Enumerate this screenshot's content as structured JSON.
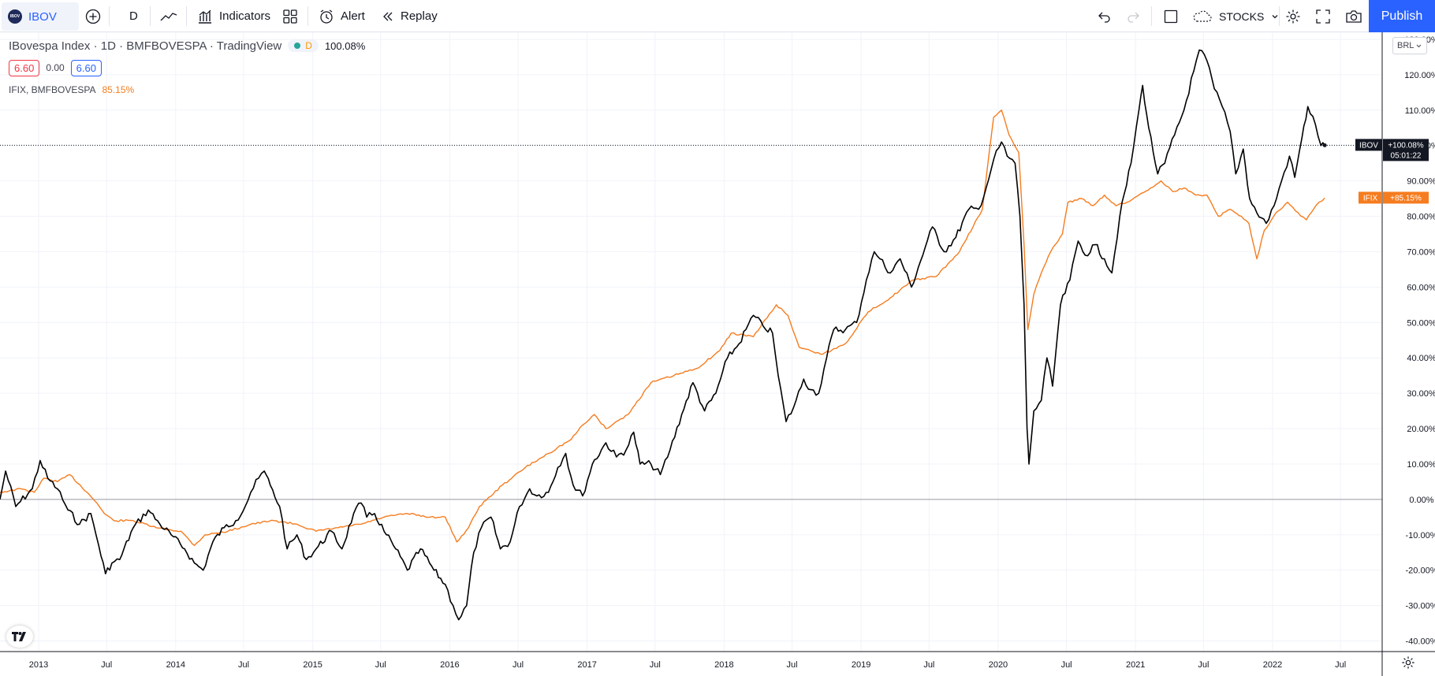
{
  "toolbar": {
    "symbol": "IBOV",
    "symbol_logo_text": "IBOV",
    "interval": "D",
    "indicators_label": "Indicators",
    "alert_label": "Alert",
    "replay_label": "Replay",
    "layout_name": "STOCKS",
    "publish_label": "Publish",
    "icons": [
      "plus-circle-icon",
      "line-chart-icon",
      "indicators-icon",
      "templates-grid-icon",
      "alert-clock-icon",
      "replay-icon",
      "undo-icon",
      "redo-icon",
      "fullscreen-square-icon",
      "cloud-icon",
      "chevron-down-icon",
      "gear-icon",
      "fullscreen-icon",
      "camera-icon"
    ]
  },
  "legend": {
    "title": "IBovespa Index · 1D · BMFBOVESPA · TradingView",
    "interval_badge": "D",
    "value": "100.08%",
    "sell_price": "6.60",
    "spread": "0.00",
    "buy_price": "6.60",
    "compare_label": "IFIX, BMFBOVESPA",
    "compare_value": "85.15%"
  },
  "currency": "BRL",
  "colors": {
    "ibov": "#000000",
    "ifix": "#f57c1f",
    "sell": "#f23645",
    "buy": "#2962ff",
    "accent": "#2962ff",
    "grid": "#f0f3fa"
  },
  "chart_data": {
    "type": "line",
    "ylabel_unit": "%",
    "ylim": [
      -43,
      132
    ],
    "xlim": [
      "2012-09-20",
      "2022-10-20"
    ],
    "y_ticks": [
      "130.00%",
      "120.00%",
      "110.00%",
      "100.00%",
      "90.00%",
      "80.00%",
      "70.00%",
      "60.00%",
      "50.00%",
      "40.00%",
      "30.00%",
      "20.00%",
      "10.00%",
      "0.00%",
      "-10.00%",
      "-20.00%",
      "-30.00%",
      "-40.00%"
    ],
    "x_ticks": [
      {
        "label": "2013",
        "date": "2013-01-01"
      },
      {
        "label": "Jul",
        "date": "2013-07-01"
      },
      {
        "label": "2014",
        "date": "2014-01-01"
      },
      {
        "label": "Jul",
        "date": "2014-07-01"
      },
      {
        "label": "2015",
        "date": "2015-01-01"
      },
      {
        "label": "Jul",
        "date": "2015-07-01"
      },
      {
        "label": "2016",
        "date": "2016-01-01"
      },
      {
        "label": "Jul",
        "date": "2016-07-01"
      },
      {
        "label": "2017",
        "date": "2017-01-01"
      },
      {
        "label": "Jul",
        "date": "2017-07-01"
      },
      {
        "label": "2018",
        "date": "2018-01-01"
      },
      {
        "label": "Jul",
        "date": "2018-07-01"
      },
      {
        "label": "2019",
        "date": "2019-01-01"
      },
      {
        "label": "Jul",
        "date": "2019-07-01"
      },
      {
        "label": "2020",
        "date": "2020-01-01"
      },
      {
        "label": "Jul",
        "date": "2020-07-01"
      },
      {
        "label": "2021",
        "date": "2021-01-01"
      },
      {
        "label": "Jul",
        "date": "2021-07-01"
      },
      {
        "label": "2022",
        "date": "2022-01-01"
      },
      {
        "label": "Jul",
        "date": "2022-07-01"
      }
    ],
    "grid": true,
    "series": [
      {
        "name": "IBOV",
        "last_label": "+100.08%",
        "countdown": "05:01:22",
        "points": [
          [
            "2012-09-20",
            0
          ],
          [
            "2012-10-05",
            8
          ],
          [
            "2012-11-01",
            -2
          ],
          [
            "2012-12-15",
            3
          ],
          [
            "2013-01-05",
            11
          ],
          [
            "2013-01-25",
            6
          ],
          [
            "2013-02-20",
            3
          ],
          [
            "2013-03-20",
            -3
          ],
          [
            "2013-04-20",
            -7
          ],
          [
            "2013-05-20",
            -4
          ],
          [
            "2013-06-10",
            -13
          ],
          [
            "2013-06-28",
            -21
          ],
          [
            "2013-07-15",
            -18
          ],
          [
            "2013-08-05",
            -17
          ],
          [
            "2013-09-10",
            -8
          ],
          [
            "2013-10-20",
            -3
          ],
          [
            "2013-11-20",
            -7
          ],
          [
            "2013-12-20",
            -10
          ],
          [
            "2014-01-25",
            -14
          ],
          [
            "2014-02-20",
            -18
          ],
          [
            "2014-03-15",
            -20
          ],
          [
            "2014-04-10",
            -12
          ],
          [
            "2014-05-10",
            -8
          ],
          [
            "2014-06-10",
            -6
          ],
          [
            "2014-07-05",
            -2
          ],
          [
            "2014-07-20",
            2
          ],
          [
            "2014-08-10",
            6
          ],
          [
            "2014-08-25",
            8
          ],
          [
            "2014-09-10",
            4
          ],
          [
            "2014-10-05",
            -2
          ],
          [
            "2014-10-25",
            -14
          ],
          [
            "2014-11-20",
            -10
          ],
          [
            "2014-12-15",
            -17
          ],
          [
            "2015-01-10",
            -14
          ],
          [
            "2015-02-20",
            -9
          ],
          [
            "2015-03-20",
            -14
          ],
          [
            "2015-04-20",
            -4
          ],
          [
            "2015-05-10",
            -1
          ],
          [
            "2015-05-25",
            -5
          ],
          [
            "2015-06-15",
            -4
          ],
          [
            "2015-07-10",
            -9
          ],
          [
            "2015-08-10",
            -14
          ],
          [
            "2015-09-10",
            -20
          ],
          [
            "2015-10-15",
            -14
          ],
          [
            "2015-11-20",
            -20
          ],
          [
            "2015-12-20",
            -24
          ],
          [
            "2016-01-10",
            -30
          ],
          [
            "2016-01-25",
            -34
          ],
          [
            "2016-02-15",
            -30
          ],
          [
            "2016-03-05",
            -15
          ],
          [
            "2016-03-25",
            -8
          ],
          [
            "2016-04-20",
            -5
          ],
          [
            "2016-05-15",
            -14
          ],
          [
            "2016-06-10",
            -12
          ],
          [
            "2016-07-05",
            -2
          ],
          [
            "2016-08-01",
            3
          ],
          [
            "2016-08-20",
            1
          ],
          [
            "2016-09-20",
            2
          ],
          [
            "2016-10-15",
            9
          ],
          [
            "2016-11-05",
            13
          ],
          [
            "2016-11-25",
            4
          ],
          [
            "2016-12-20",
            1
          ],
          [
            "2017-01-15",
            10
          ],
          [
            "2017-02-20",
            16
          ],
          [
            "2017-03-20",
            12
          ],
          [
            "2017-04-15",
            14
          ],
          [
            "2017-05-05",
            19
          ],
          [
            "2017-05-22",
            10
          ],
          [
            "2017-06-20",
            10
          ],
          [
            "2017-07-15",
            7
          ],
          [
            "2017-08-10",
            14
          ],
          [
            "2017-09-10",
            24
          ],
          [
            "2017-10-10",
            33
          ],
          [
            "2017-11-10",
            25
          ],
          [
            "2017-12-10",
            30
          ],
          [
            "2018-01-10",
            40
          ],
          [
            "2018-02-10",
            44
          ],
          [
            "2018-02-28",
            48
          ],
          [
            "2018-03-20",
            52
          ],
          [
            "2018-04-15",
            49
          ],
          [
            "2018-05-10",
            47
          ],
          [
            "2018-05-25",
            35
          ],
          [
            "2018-06-15",
            22
          ],
          [
            "2018-07-05",
            26
          ],
          [
            "2018-08-01",
            34
          ],
          [
            "2018-08-20",
            31
          ],
          [
            "2018-09-10",
            30
          ],
          [
            "2018-10-01",
            40
          ],
          [
            "2018-10-20",
            48
          ],
          [
            "2018-11-20",
            48
          ],
          [
            "2018-12-20",
            50
          ],
          [
            "2019-01-15",
            62
          ],
          [
            "2019-02-05",
            70
          ],
          [
            "2019-02-20",
            68
          ],
          [
            "2019-03-20",
            64
          ],
          [
            "2019-04-15",
            68
          ],
          [
            "2019-05-15",
            60
          ],
          [
            "2019-06-20",
            71
          ],
          [
            "2019-07-10",
            77
          ],
          [
            "2019-08-10",
            70
          ],
          [
            "2019-09-10",
            74
          ],
          [
            "2019-10-15",
            82
          ],
          [
            "2019-11-10",
            82
          ],
          [
            "2019-11-30",
            88
          ],
          [
            "2019-12-20",
            96
          ],
          [
            "2020-01-10",
            101
          ],
          [
            "2020-01-25",
            97
          ],
          [
            "2020-02-15",
            95
          ],
          [
            "2020-02-28",
            80
          ],
          [
            "2020-03-10",
            55
          ],
          [
            "2020-03-18",
            20
          ],
          [
            "2020-03-23",
            10
          ],
          [
            "2020-04-05",
            25
          ],
          [
            "2020-04-25",
            28
          ],
          [
            "2020-05-10",
            40
          ],
          [
            "2020-05-25",
            32
          ],
          [
            "2020-06-15",
            55
          ],
          [
            "2020-07-10",
            62
          ],
          [
            "2020-08-01",
            73
          ],
          [
            "2020-08-20",
            69
          ],
          [
            "2020-09-15",
            72
          ],
          [
            "2020-10-10",
            68
          ],
          [
            "2020-10-30",
            64
          ],
          [
            "2020-11-20",
            80
          ],
          [
            "2020-12-20",
            95
          ],
          [
            "2021-01-10",
            110
          ],
          [
            "2021-01-20",
            117
          ],
          [
            "2021-02-05",
            105
          ],
          [
            "2021-03-01",
            92
          ],
          [
            "2021-03-20",
            95
          ],
          [
            "2021-04-15",
            103
          ],
          [
            "2021-05-10",
            110
          ],
          [
            "2021-06-05",
            121
          ],
          [
            "2021-06-20",
            127
          ],
          [
            "2021-07-10",
            124
          ],
          [
            "2021-07-30",
            116
          ],
          [
            "2021-08-20",
            111
          ],
          [
            "2021-09-10",
            104
          ],
          [
            "2021-09-25",
            92
          ],
          [
            "2021-10-15",
            99
          ],
          [
            "2021-11-01",
            85
          ],
          [
            "2021-11-20",
            81
          ],
          [
            "2021-12-15",
            78
          ],
          [
            "2022-01-05",
            83
          ],
          [
            "2022-01-25",
            90
          ],
          [
            "2022-02-15",
            97
          ],
          [
            "2022-03-01",
            91
          ],
          [
            "2022-03-20",
            102
          ],
          [
            "2022-04-05",
            111
          ],
          [
            "2022-04-25",
            106
          ],
          [
            "2022-05-10",
            100
          ],
          [
            "2022-05-20",
            100.08
          ]
        ]
      },
      {
        "name": "IFIX",
        "last_label": "+85.15%",
        "points": [
          [
            "2012-09-20",
            2
          ],
          [
            "2012-11-15",
            3
          ],
          [
            "2012-12-20",
            2
          ],
          [
            "2013-01-15",
            6
          ],
          [
            "2013-02-20",
            5
          ],
          [
            "2013-03-25",
            7
          ],
          [
            "2013-05-10",
            2
          ],
          [
            "2013-06-05",
            -1
          ],
          [
            "2013-06-25",
            -4
          ],
          [
            "2013-07-20",
            -6
          ],
          [
            "2013-09-10",
            -6
          ],
          [
            "2013-11-10",
            -8
          ],
          [
            "2014-01-15",
            -9
          ],
          [
            "2014-02-20",
            -13
          ],
          [
            "2014-03-20",
            -10
          ],
          [
            "2014-05-20",
            -9
          ],
          [
            "2014-07-20",
            -7
          ],
          [
            "2014-09-20",
            -6
          ],
          [
            "2014-11-20",
            -7
          ],
          [
            "2015-01-10",
            -9
          ],
          [
            "2015-03-10",
            -8
          ],
          [
            "2015-05-10",
            -7
          ],
          [
            "2015-07-10",
            -5
          ],
          [
            "2015-09-10",
            -4
          ],
          [
            "2015-11-10",
            -5
          ],
          [
            "2015-12-20",
            -5
          ],
          [
            "2016-01-20",
            -12
          ],
          [
            "2016-02-20",
            -8
          ],
          [
            "2016-03-20",
            -2
          ],
          [
            "2016-05-20",
            4
          ],
          [
            "2016-07-20",
            9
          ],
          [
            "2016-09-20",
            13
          ],
          [
            "2016-11-20",
            17
          ],
          [
            "2016-12-20",
            21
          ],
          [
            "2017-01-20",
            24
          ],
          [
            "2017-02-20",
            20
          ],
          [
            "2017-04-20",
            24
          ],
          [
            "2017-06-20",
            33
          ],
          [
            "2017-08-20",
            35
          ],
          [
            "2017-10-20",
            37
          ],
          [
            "2017-12-20",
            42
          ],
          [
            "2018-01-20",
            47
          ],
          [
            "2018-03-20",
            46
          ],
          [
            "2018-05-20",
            55
          ],
          [
            "2018-06-20",
            52
          ],
          [
            "2018-07-20",
            43
          ],
          [
            "2018-09-20",
            41
          ],
          [
            "2018-11-20",
            44
          ],
          [
            "2019-01-20",
            53
          ],
          [
            "2019-03-20",
            57
          ],
          [
            "2019-05-20",
            62
          ],
          [
            "2019-07-20",
            63
          ],
          [
            "2019-09-20",
            70
          ],
          [
            "2019-11-20",
            82
          ],
          [
            "2019-12-20",
            108
          ],
          [
            "2020-01-10",
            110
          ],
          [
            "2020-01-30",
            103
          ],
          [
            "2020-02-25",
            98
          ],
          [
            "2020-03-10",
            72
          ],
          [
            "2020-03-20",
            48
          ],
          [
            "2020-04-05",
            58
          ],
          [
            "2020-04-25",
            64
          ],
          [
            "2020-05-20",
            70
          ],
          [
            "2020-06-20",
            75
          ],
          [
            "2020-07-05",
            84
          ],
          [
            "2020-08-10",
            85
          ],
          [
            "2020-09-10",
            83
          ],
          [
            "2020-10-10",
            86
          ],
          [
            "2020-11-10",
            83
          ],
          [
            "2020-12-10",
            84
          ],
          [
            "2021-01-10",
            86
          ],
          [
            "2021-02-10",
            88
          ],
          [
            "2021-03-10",
            90
          ],
          [
            "2021-04-10",
            87
          ],
          [
            "2021-05-10",
            88
          ],
          [
            "2021-06-10",
            86
          ],
          [
            "2021-07-10",
            86
          ],
          [
            "2021-08-10",
            80
          ],
          [
            "2021-09-10",
            82
          ],
          [
            "2021-10-10",
            80
          ],
          [
            "2021-10-30",
            78
          ],
          [
            "2021-11-20",
            68
          ],
          [
            "2021-12-10",
            76
          ],
          [
            "2022-01-10",
            81
          ],
          [
            "2022-02-10",
            84
          ],
          [
            "2022-03-10",
            81
          ],
          [
            "2022-04-01",
            79
          ],
          [
            "2022-04-20",
            82
          ],
          [
            "2022-05-05",
            84
          ],
          [
            "2022-05-20",
            85.15
          ]
        ]
      }
    ]
  }
}
